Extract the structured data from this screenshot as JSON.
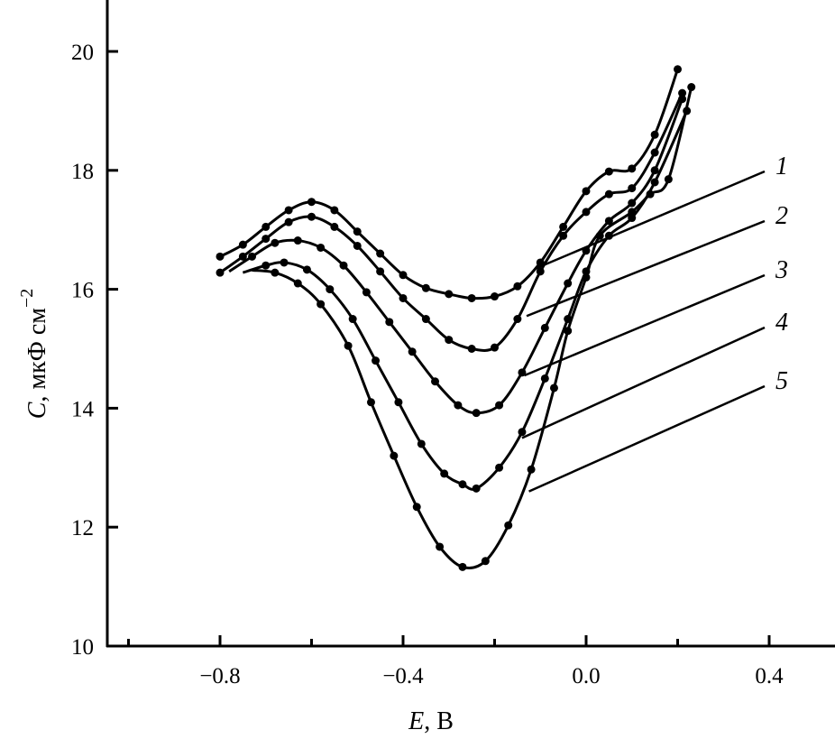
{
  "chart_data": {
    "type": "line",
    "title": "",
    "xlabel": "E, В",
    "xlabel_parts": {
      "var": "E",
      "unit": ", В"
    },
    "ylabel": "C, мкФ см−2",
    "ylabel_parts": {
      "var": "C",
      "unit": ", мкФ см",
      "exp": "−2"
    },
    "xlim": [
      -1.05,
      0.54
    ],
    "ylim": [
      10,
      20.9
    ],
    "x_ticks": [
      -0.8,
      -0.4,
      0.0,
      0.4
    ],
    "x_tick_labels": [
      "−0.8",
      "−0.4",
      "0.0",
      "0.4"
    ],
    "x_minor_ticks": [
      -1.0,
      -0.6,
      -0.2,
      0.2
    ],
    "y_ticks": [
      10,
      12,
      14,
      16,
      18,
      20
    ],
    "y_tick_labels": [
      "10",
      "12",
      "14",
      "16",
      "18",
      "20"
    ],
    "grid": false,
    "legend": "curve labels at right with leader lines",
    "color": "#000000",
    "series": [
      {
        "name": "1",
        "x": [
          -0.8,
          -0.75,
          -0.7,
          -0.65,
          -0.6,
          -0.55,
          -0.5,
          -0.45,
          -0.4,
          -0.35,
          -0.3,
          -0.25,
          -0.2,
          -0.15,
          -0.1,
          -0.05,
          0.0,
          0.05,
          0.1,
          0.15,
          0.2
        ],
        "y": [
          16.55,
          16.75,
          17.05,
          17.33,
          17.47,
          17.33,
          16.97,
          16.6,
          16.24,
          16.02,
          15.92,
          15.85,
          15.88,
          16.05,
          16.45,
          17.05,
          17.65,
          17.98,
          18.03,
          18.6,
          19.7
        ]
      },
      {
        "name": "2",
        "x": [
          -0.8,
          -0.75,
          -0.7,
          -0.65,
          -0.6,
          -0.55,
          -0.5,
          -0.45,
          -0.4,
          -0.35,
          -0.3,
          -0.25,
          -0.2,
          -0.15,
          -0.1,
          -0.05,
          0.0,
          0.05,
          0.1,
          0.15,
          0.21
        ],
        "y": [
          16.28,
          16.55,
          16.85,
          17.13,
          17.22,
          17.05,
          16.73,
          16.3,
          15.85,
          15.5,
          15.15,
          15.0,
          15.02,
          15.5,
          16.3,
          16.9,
          17.3,
          17.6,
          17.7,
          18.3,
          19.3
        ]
      },
      {
        "name": "3",
        "x": [
          -0.78,
          -0.73,
          -0.68,
          -0.63,
          -0.58,
          -0.53,
          -0.48,
          -0.43,
          -0.38,
          -0.33,
          -0.28,
          -0.24,
          -0.19,
          -0.14,
          -0.09,
          -0.04,
          0.0,
          0.05,
          0.1,
          0.15,
          0.21
        ],
        "y": [
          16.3,
          16.55,
          16.78,
          16.82,
          16.7,
          16.4,
          15.95,
          15.45,
          14.95,
          14.45,
          14.05,
          13.92,
          14.05,
          14.6,
          15.35,
          16.1,
          16.65,
          17.15,
          17.45,
          18.0,
          19.2
        ]
      },
      {
        "name": "4",
        "x": [
          -0.75,
          -0.7,
          -0.66,
          -0.61,
          -0.56,
          -0.51,
          -0.46,
          -0.41,
          -0.36,
          -0.31,
          -0.27,
          -0.24,
          -0.19,
          -0.14,
          -0.09,
          -0.04,
          0.0,
          0.05,
          0.1,
          0.15,
          0.22
        ],
        "y": [
          16.28,
          16.4,
          16.45,
          16.33,
          16.0,
          15.5,
          14.8,
          14.1,
          13.4,
          12.9,
          12.72,
          12.65,
          13.0,
          13.6,
          14.5,
          15.5,
          16.3,
          16.9,
          17.2,
          17.8,
          19.0
        ]
      },
      {
        "name": "5",
        "x": [
          -0.73,
          -0.68,
          -0.63,
          -0.58,
          -0.52,
          -0.47,
          -0.42,
          -0.37,
          -0.32,
          -0.27,
          -0.22,
          -0.17,
          -0.12,
          -0.07,
          -0.04,
          0.0,
          0.03,
          0.1,
          0.14,
          0.18,
          0.23
        ],
        "y": [
          16.32,
          16.28,
          16.1,
          15.75,
          15.05,
          14.1,
          13.2,
          12.34,
          11.67,
          11.33,
          11.43,
          12.03,
          12.97,
          14.34,
          15.3,
          16.2,
          16.9,
          17.3,
          17.6,
          17.85,
          19.4
        ]
      }
    ],
    "leader_lines": [
      {
        "series": "1",
        "from": [
          -0.11,
          16.35
        ]
      },
      {
        "series": "2",
        "from": [
          -0.13,
          15.55
        ]
      },
      {
        "series": "3",
        "from": [
          -0.135,
          14.55
        ]
      },
      {
        "series": "4",
        "from": [
          -0.14,
          13.5
        ]
      },
      {
        "series": "5",
        "from": [
          -0.125,
          12.6
        ]
      }
    ]
  }
}
